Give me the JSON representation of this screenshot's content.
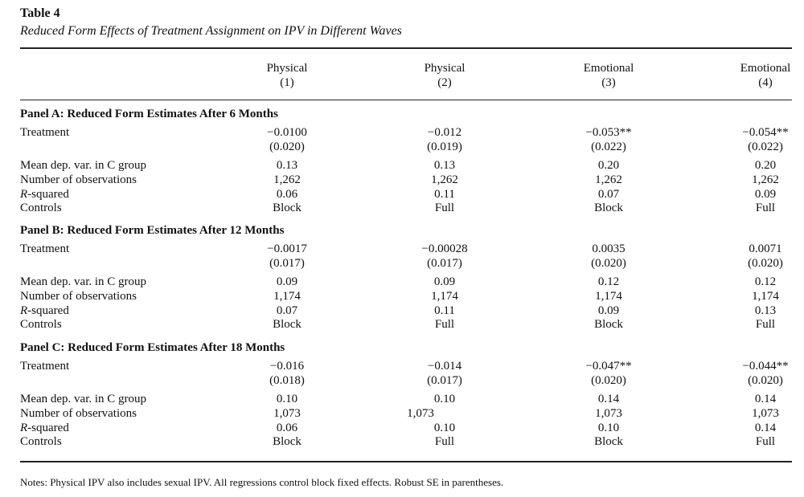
{
  "table": {
    "title": "Table 4",
    "subtitle": "Reduced Form Effects of Treatment Assignment on IPV in Different Waves",
    "columns": [
      {
        "name": "Physical",
        "num": "(1)"
      },
      {
        "name": "Physical",
        "num": "(2)"
      },
      {
        "name": "Emotional",
        "num": "(3)"
      },
      {
        "name": "Emotional",
        "num": "(4)"
      }
    ],
    "row_labels": {
      "treatment": "Treatment",
      "mean_dep": "Mean dep. var. in C group",
      "n_obs": "Number of observations",
      "r_squared_italic": "R",
      "r_squared_rest": "-squared",
      "controls": "Controls"
    },
    "panels": [
      {
        "title": "Panel A: Reduced Form Estimates After 6 Months",
        "treatment": [
          "−0.0100",
          "−0.012",
          "−0.053**",
          "−0.054**"
        ],
        "se": [
          "(0.020)",
          "(0.019)",
          "(0.022)",
          "(0.022)"
        ],
        "mean_dep": [
          "0.13",
          "0.13",
          "0.20",
          "0.20"
        ],
        "n_obs": [
          "1,262",
          "1,262",
          "1,262",
          "1,262"
        ],
        "r_squared": [
          "0.06",
          "0.11",
          "0.07",
          "0.09"
        ],
        "controls": [
          "Block",
          "Full",
          "Block",
          "Full"
        ]
      },
      {
        "title": "Panel B: Reduced Form Estimates After 12 Months",
        "treatment": [
          "−0.0017",
          "−0.00028",
          "0.0035",
          "0.0071"
        ],
        "se": [
          "(0.017)",
          "(0.017)",
          "(0.020)",
          "(0.020)"
        ],
        "mean_dep": [
          "0.09",
          "0.09",
          "0.12",
          "0.12"
        ],
        "n_obs": [
          "1,174",
          "1,174",
          "1,174",
          "1,174"
        ],
        "r_squared": [
          "0.07",
          "0.11",
          "0.09",
          "0.13"
        ],
        "controls": [
          "Block",
          "Full",
          "Block",
          "Full"
        ]
      },
      {
        "title": "Panel C: Reduced Form Estimates After 18 Months",
        "treatment": [
          "−0.016",
          "−0.014",
          "−0.047**",
          "−0.044**"
        ],
        "se": [
          "(0.018)",
          "(0.017)",
          "(0.020)",
          "(0.020)"
        ],
        "mean_dep": [
          "0.10",
          "0.10",
          "0.14",
          "0.14"
        ],
        "n_obs": [
          "1,073",
          "1,073",
          "1,073",
          "1,073"
        ],
        "r_squared": [
          "0.06",
          "0.10",
          "0.10",
          "0.14"
        ],
        "controls": [
          "Block",
          "Full",
          "Block",
          "Full"
        ]
      }
    ],
    "notes": "Notes: Physical IPV also includes sexual IPV. All regressions control block fixed effects. Robust SE in parentheses."
  }
}
